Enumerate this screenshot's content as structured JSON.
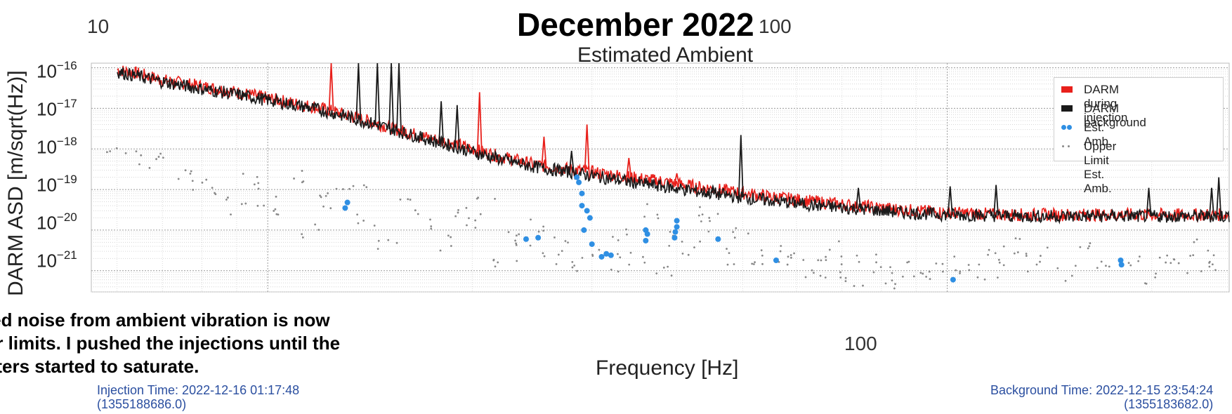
{
  "headline": "December 2022",
  "chart_data": {
    "type": "line",
    "title": "Estimated Ambient",
    "xlabel": "Frequency [Hz]",
    "ylabel": "DARM ASD [m/sqrt(Hz)]",
    "x_scale": "log",
    "y_scale": "log",
    "xlim": [
      5.5,
      260
    ],
    "ylim": [
      3e-22,
      1.3e-16
    ],
    "x_ticks_top": [
      "10",
      "100"
    ],
    "x_ticks_bottom": [
      "100"
    ],
    "y_ticks": [
      {
        "base": "10",
        "exp": "−16",
        "value": 1e-16
      },
      {
        "base": "10",
        "exp": "−17",
        "value": 1e-17
      },
      {
        "base": "10",
        "exp": "−18",
        "value": 1e-18
      },
      {
        "base": "10",
        "exp": "−19",
        "value": 1e-19
      },
      {
        "base": "10",
        "exp": "−20",
        "value": 1e-20
      },
      {
        "base": "10",
        "exp": "−21",
        "value": 1e-21
      }
    ],
    "grid": true,
    "legend_position": "top-right",
    "series": [
      {
        "name": "DARM during injection",
        "color": "#e8201b",
        "points": [
          [
            6,
            9e-17
          ],
          [
            6.5,
            7e-17
          ],
          [
            7,
            5e-17
          ],
          [
            8,
            3.5e-17
          ],
          [
            9,
            2.5e-17
          ],
          [
            10,
            1.8e-17
          ],
          [
            11,
            1.3e-17
          ],
          [
            12,
            1e-17
          ],
          [
            13,
            7e-18
          ],
          [
            14,
            5e-18
          ],
          [
            15,
            3.5e-18
          ],
          [
            16,
            2.6e-18
          ],
          [
            17,
            2e-18
          ],
          [
            18,
            1.6e-18
          ],
          [
            19,
            1.3e-18
          ],
          [
            20,
            1e-18
          ],
          [
            21,
            8e-19
          ],
          [
            22,
            6.5e-19
          ],
          [
            23,
            5.5e-19
          ],
          [
            24,
            4.6e-19
          ],
          [
            25,
            4e-19
          ],
          [
            27,
            3.4e-19
          ],
          [
            29,
            2.9e-19
          ],
          [
            31,
            2.5e-19
          ],
          [
            33,
            2.2e-19
          ],
          [
            35,
            1.9e-19
          ],
          [
            38,
            1.6e-19
          ],
          [
            41,
            1.3e-19
          ],
          [
            44,
            1.1e-19
          ],
          [
            48,
            9e-20
          ],
          [
            52,
            7.5e-20
          ],
          [
            57,
            6.2e-20
          ],
          [
            62,
            5.3e-20
          ],
          [
            68,
            4.5e-20
          ],
          [
            75,
            3.9e-20
          ],
          [
            82,
            3.4e-20
          ],
          [
            90,
            3e-20
          ],
          [
            100,
            2.7e-20
          ],
          [
            115,
            2.5e-20
          ],
          [
            130,
            2.4e-20
          ],
          [
            150,
            2.4e-20
          ],
          [
            180,
            2.4e-20
          ],
          [
            210,
            2.4e-20
          ],
          [
            250,
            2.4e-20
          ]
        ]
      },
      {
        "name": "DARM background",
        "color": "#1a1a1a",
        "points": [
          [
            6,
            8e-17
          ],
          [
            6.5,
            6e-17
          ],
          [
            7,
            4.5e-17
          ],
          [
            8,
            3e-17
          ],
          [
            9,
            2.2e-17
          ],
          [
            10,
            1.6e-17
          ],
          [
            11,
            1.2e-17
          ],
          [
            12,
            9e-18
          ],
          [
            13,
            6.5e-18
          ],
          [
            14,
            4.6e-18
          ],
          [
            15,
            3.3e-18
          ],
          [
            16,
            2.4e-18
          ],
          [
            17,
            1.8e-18
          ],
          [
            18,
            1.4e-18
          ],
          [
            19,
            1.1e-18
          ],
          [
            20,
            8.5e-19
          ],
          [
            21,
            6.8e-19
          ],
          [
            22,
            5.6e-19
          ],
          [
            23,
            4.7e-19
          ],
          [
            24,
            4e-19
          ],
          [
            25,
            3.5e-19
          ],
          [
            27,
            2.9e-19
          ],
          [
            29,
            2.4e-19
          ],
          [
            31,
            2e-19
          ],
          [
            33,
            1.7e-19
          ],
          [
            35,
            1.45e-19
          ],
          [
            38,
            1.2e-19
          ],
          [
            41,
            1e-19
          ],
          [
            44,
            8.5e-20
          ],
          [
            48,
            7e-20
          ],
          [
            52,
            5.9e-20
          ],
          [
            57,
            5e-20
          ],
          [
            62,
            4.3e-20
          ],
          [
            68,
            3.7e-20
          ],
          [
            75,
            3.3e-20
          ],
          [
            82,
            2.9e-20
          ],
          [
            90,
            2.6e-20
          ],
          [
            100,
            2.4e-20
          ],
          [
            115,
            2.3e-20
          ],
          [
            130,
            2.2e-20
          ],
          [
            150,
            2.2e-20
          ],
          [
            180,
            2.2e-20
          ],
          [
            210,
            2.2e-20
          ],
          [
            250,
            2.2e-20
          ]
        ]
      },
      {
        "name": "Est. Amb.",
        "color": "#2f8fe3",
        "style": "points",
        "points": [
          [
            13,
            3.5e-20
          ],
          [
            13.1,
            4.8e-20
          ],
          [
            24,
            6e-21
          ],
          [
            25,
            6.5e-21
          ],
          [
            28.5,
            2e-19
          ],
          [
            28.7,
            1.5e-19
          ],
          [
            29,
            8e-20
          ],
          [
            29,
            4e-20
          ],
          [
            29.5,
            3e-20
          ],
          [
            29.8,
            2e-20
          ],
          [
            29.2,
            1e-20
          ],
          [
            30,
            4.5e-21
          ],
          [
            31,
            2.2e-21
          ],
          [
            31.5,
            2.6e-21
          ],
          [
            32,
            2.4e-21
          ],
          [
            36,
            1e-20
          ],
          [
            36.2,
            8e-21
          ],
          [
            36,
            5.5e-21
          ],
          [
            40,
            1.7e-20
          ],
          [
            40,
            1.2e-20
          ],
          [
            39.8,
            9e-21
          ],
          [
            39.7,
            6.5e-21
          ],
          [
            46,
            6e-21
          ],
          [
            56,
            1.8e-21
          ],
          [
            102,
            6e-22
          ],
          [
            180,
            1.8e-21
          ],
          [
            180.5,
            1.4e-21
          ]
        ]
      },
      {
        "name": "Upper Limit Est. Amb.",
        "color": "#888888",
        "style": "points",
        "points": [
          [
            6,
            9e-19
          ],
          [
            6.5,
            5e-19
          ],
          [
            7,
            7e-19
          ],
          [
            7.5,
            3e-19
          ],
          [
            8,
            1.5e-19
          ],
          [
            8.5,
            8e-20
          ],
          [
            9,
            4e-20
          ],
          [
            9.5,
            1.5e-19
          ],
          [
            10,
            6e-20
          ],
          [
            10.5,
            3e-20
          ],
          [
            11,
            2e-19
          ],
          [
            11.5,
            1e-20
          ],
          [
            12,
            6e-20
          ],
          [
            12.5,
            1.2e-19
          ],
          [
            13.5,
            9e-20
          ],
          [
            14,
            2e-20
          ],
          [
            15,
            6e-21
          ],
          [
            16,
            4e-20
          ],
          [
            17,
            1.5e-20
          ],
          [
            18,
            5e-21
          ],
          [
            19,
            2.5e-20
          ],
          [
            20,
            1.5e-20
          ],
          [
            21,
            4e-20
          ],
          [
            22,
            1.4e-21
          ],
          [
            23,
            9e-21
          ],
          [
            24,
            3e-21
          ],
          [
            25,
            1.5e-20
          ],
          [
            26,
            2e-21
          ],
          [
            27,
            5e-21
          ],
          [
            28,
            1e-21
          ],
          [
            30,
            3e-21
          ],
          [
            32,
            1.5e-21
          ],
          [
            33,
            8e-21
          ],
          [
            35,
            2e-21
          ],
          [
            37,
            3e-20
          ],
          [
            38,
            1.2e-21
          ],
          [
            40,
            6e-21
          ],
          [
            42,
            3e-21
          ],
          [
            44,
            2.5e-20
          ],
          [
            46,
            1.5e-20
          ],
          [
            48,
            2e-21
          ],
          [
            50,
            7e-21
          ],
          [
            53,
            1.1e-21
          ],
          [
            55,
            4e-21
          ],
          [
            58,
            2e-21
          ],
          [
            60,
            1.6e-21
          ],
          [
            63,
            7e-22
          ],
          [
            65,
            1.2e-21
          ],
          [
            68,
            3e-21
          ],
          [
            70,
            9e-22
          ],
          [
            73,
            5e-22
          ],
          [
            76,
            1.5e-21
          ],
          [
            80,
            8e-22
          ],
          [
            84,
            6e-22
          ],
          [
            88,
            1.2e-21
          ],
          [
            92,
            5e-22
          ],
          [
            96,
            9e-22
          ],
          [
            105,
            1.4e-21
          ],
          [
            110,
            8e-22
          ],
          [
            115,
            2e-21
          ],
          [
            120,
            1.1e-21
          ],
          [
            125,
            4e-21
          ],
          [
            130,
            1.6e-21
          ],
          [
            140,
            2.5e-21
          ],
          [
            150,
            9e-22
          ],
          [
            160,
            3e-21
          ],
          [
            170,
            1.2e-21
          ],
          [
            190,
            2e-21
          ],
          [
            200,
            7e-22
          ],
          [
            210,
            2.8e-21
          ],
          [
            220,
            1.4e-21
          ],
          [
            230,
            4e-21
          ],
          [
            240,
            9e-22
          ],
          [
            250,
            2e-21
          ]
        ]
      }
    ],
    "peaks": [
      {
        "x": 12.4,
        "color": "#e8201b",
        "y": 3e-16
      },
      {
        "x": 13.6,
        "color": "#1a1a1a",
        "y": 3e-16
      },
      {
        "x": 14.5,
        "color": "#1a1a1a",
        "y": 3e-16
      },
      {
        "x": 15.2,
        "color": "#1a1a1a",
        "y": 3e-16
      },
      {
        "x": 15.6,
        "color": "#1a1a1a",
        "y": 3e-16
      },
      {
        "x": 18,
        "color": "#1a1a1a",
        "y": 1.5e-17
      },
      {
        "x": 19,
        "color": "#1a1a1a",
        "y": 1.2e-17
      },
      {
        "x": 20.5,
        "color": "#e8201b",
        "y": 2.5e-17
      },
      {
        "x": 25.5,
        "color": "#e8201b",
        "y": 2e-18
      },
      {
        "x": 28,
        "color": "#1a1a1a",
        "y": 9e-19
      },
      {
        "x": 29.5,
        "color": "#e8201b",
        "y": 4e-18
      },
      {
        "x": 34,
        "color": "#e8201b",
        "y": 6e-19
      },
      {
        "x": 40,
        "color": "#e8201b",
        "y": 2.5e-19
      },
      {
        "x": 49.7,
        "color": "#1a1a1a",
        "y": 2.2e-18
      },
      {
        "x": 45.2,
        "color": "#1a1a1a",
        "y": 1.2e-19
      },
      {
        "x": 74,
        "color": "#1a1a1a",
        "y": 1.1e-19
      },
      {
        "x": 101,
        "color": "#1a1a1a",
        "y": 1.2e-19
      },
      {
        "x": 118,
        "color": "#1a1a1a",
        "y": 1.3e-19
      },
      {
        "x": 198,
        "color": "#1a1a1a",
        "y": 1.1e-19
      },
      {
        "x": 245,
        "color": "#1a1a1a",
        "y": 1.1e-19
      },
      {
        "x": 251,
        "color": "#1a1a1a",
        "y": 2e-19
      }
    ]
  },
  "note": "ated noise from ambient vibration is now\nper limits. I pushed the injections until the\nneters started to saturate.",
  "injection_time": "Injection Time: 2022-12-16 01:17:48\n(1355188686.0)",
  "background_time": "Background Time: 2022-12-15 23:54:24\n(1355183682.0)"
}
